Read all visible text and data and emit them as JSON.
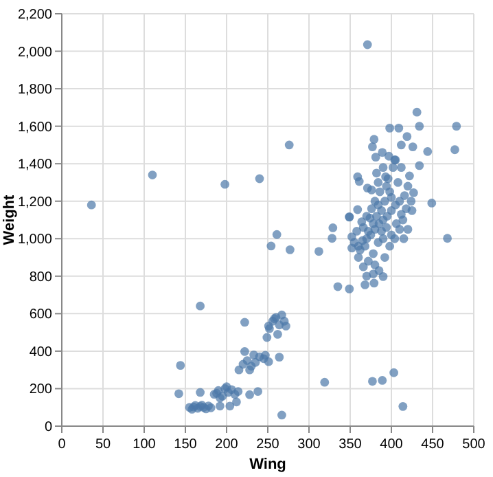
{
  "chart_data": {
    "type": "scatter",
    "xlabel": "Wing",
    "ylabel": "Weight",
    "grid": true,
    "marker": "circle",
    "xlim": [
      0,
      500
    ],
    "xticks": [
      0,
      50,
      100,
      150,
      200,
      250,
      300,
      350,
      400,
      450,
      500
    ],
    "ylim": [
      0,
      2200
    ],
    "yticks": [
      0,
      200,
      400,
      600,
      800,
      {
        "value": 1000,
        "label": "1,000"
      },
      {
        "value": 1200,
        "label": "1,200"
      },
      {
        "value": 1400,
        "label": "1,400"
      },
      {
        "value": 1600,
        "label": "1,600"
      },
      {
        "value": 1800,
        "label": "1,800"
      },
      {
        "value": 2000,
        "label": "2,000"
      },
      {
        "value": 2200,
        "label": "2,200"
      }
    ],
    "series": [
      {
        "color": "#4c78a8",
        "x": [
          36,
          110,
          198,
          240,
          276,
          371,
          431,
          434,
          479,
          477,
          444,
          449,
          398,
          409,
          419,
          379,
          377,
          412,
          426,
          389,
          397,
          404,
          381,
          434,
          359,
          361,
          382,
          393,
          422,
          371,
          427,
          349,
          359,
          468,
          329,
          328,
          349,
          312,
          335,
          349,
          368,
          379,
          390,
          378,
          261,
          254,
          277,
          168,
          222,
          144,
          142,
          319,
          377,
          389,
          403,
          414,
          267,
          238,
          228,
          168,
          192,
          204,
          212,
          360,
          365,
          370,
          375,
          380,
          385,
          390,
          395,
          400,
          405,
          410,
          398,
          392,
          388,
          382,
          378,
          372,
          368,
          362,
          355,
          352,
          358,
          366,
          374,
          384,
          394,
          400,
          406,
          412,
          416,
          420,
          408,
          396,
          386,
          380,
          376,
          370,
          364,
          390,
          384,
          378,
          372,
          366,
          380,
          392,
          398,
          404,
          410,
          414,
          418,
          424,
          402,
          390,
          384,
          376,
          388,
          394,
          400,
          360,
          352,
          385,
          370,
          415,
          420,
          425,
          412,
          405,
          155,
          158,
          162,
          165,
          168,
          172,
          175,
          178,
          181,
          160,
          170,
          185,
          190,
          195,
          198,
          202,
          206,
          210,
          214,
          192,
          200,
          188,
          215,
          220,
          225,
          230,
          235,
          240,
          222,
          228,
          233,
          245,
          247,
          251,
          252,
          256,
          260,
          264,
          267,
          258,
          251,
          272,
          249,
          262,
          270,
          264
        ],
        "values": [
          1180,
          1340,
          1290,
          1320,
          1500,
          2035,
          1675,
          1600,
          1600,
          1475,
          1465,
          1190,
          1590,
          1590,
          1545,
          1530,
          1490,
          1500,
          1490,
          1460,
          1440,
          1420,
          1435,
          1390,
          1330,
          1305,
          1350,
          1330,
          1335,
          1270,
          1245,
          1115,
          1155,
          1002,
          1058,
          1002,
          1117,
          932,
          744,
          732,
          754,
          763,
          798,
          812,
          1022,
          961,
          941,
          641,
          554,
          324,
          173,
          234,
          239,
          244,
          285,
          105,
          59,
          185,
          168,
          180,
          107,
          107,
          129,
          960,
          990,
          1000,
          1020,
          1050,
          1080,
          1100,
          1120,
          1150,
          1180,
          1200,
          1250,
          1200,
          1150,
          1120,
          1080,
          1040,
          960,
          940,
          980,
          1010,
          1040,
          1060,
          1110,
          1180,
          1060,
          1020,
          1080,
          1130,
          1230,
          1280,
          1300,
          1320,
          1250,
          1200,
          1160,
          1120,
          1090,
          1000,
          980,
          920,
          880,
          850,
          860,
          900,
          960,
          1000,
          1050,
          1100,
          1160,
          1200,
          1380,
          1380,
          1300,
          1260,
          1040,
          1280,
          1220,
          900,
          950,
          830,
          800,
          1000,
          1050,
          1150,
          1380,
          1420,
          100,
          90,
          110,
          95,
          105,
          100,
          92,
          108,
          98,
          102,
          112,
          170,
          190,
          160,
          200,
          180,
          195,
          170,
          185,
          150,
          210,
          175,
          300,
          330,
          350,
          320,
          340,
          370,
          398,
          300,
          380,
          360,
          378,
          344,
          520,
          560,
          580,
          540,
          593,
          573,
          534,
          534,
          473,
          490,
          560,
          368
        ]
      }
    ]
  }
}
